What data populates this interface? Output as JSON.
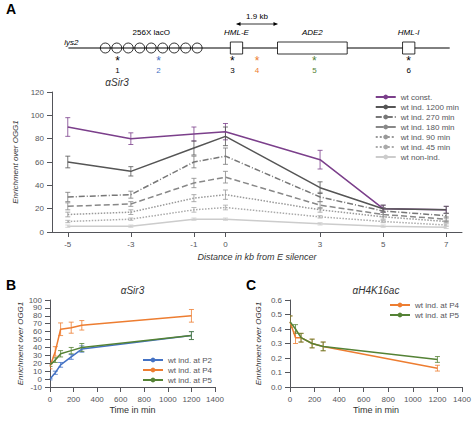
{
  "chart_data": [
    {
      "type": "line",
      "title": "αSir3",
      "xlabel": "Distance in kb from E silencer",
      "ylabel": "Enrichment over OGG1",
      "x": [
        -5,
        -3,
        -1,
        0,
        3,
        5,
        7
      ],
      "series": [
        {
          "name": "wt const.",
          "color": "#7B3F8B",
          "line_style": "solid",
          "values": [
            90,
            80,
            84,
            86,
            62,
            20,
            19
          ],
          "errors": [
            8,
            5,
            6,
            7,
            8,
            3,
            3
          ]
        },
        {
          "name": "wt ind. 1200 min",
          "color": "#555555",
          "line_style": "solid",
          "values": [
            60,
            52,
            72,
            82,
            38,
            20,
            19
          ],
          "errors": [
            5,
            4,
            6,
            8,
            5,
            3,
            3
          ]
        },
        {
          "name": "wt ind. 270 min",
          "color": "#777777",
          "line_style": "dashdot",
          "values": [
            30,
            32,
            60,
            65,
            30,
            18,
            14
          ],
          "errors": [
            4,
            3,
            5,
            7,
            4,
            3,
            2
          ]
        },
        {
          "name": "wt ind. 180 min",
          "color": "#888888",
          "line_style": "dashed",
          "values": [
            22,
            24,
            42,
            47,
            23,
            15,
            11
          ],
          "errors": [
            3,
            2,
            4,
            5,
            3,
            2,
            2
          ]
        },
        {
          "name": "wt ind. 90 min",
          "color": "#999999",
          "line_style": "dotted",
          "values": [
            15,
            17,
            29,
            32,
            19,
            13,
            9
          ],
          "errors": [
            2,
            2,
            3,
            4,
            2,
            2,
            1
          ]
        },
        {
          "name": "wt ind. 45 min",
          "color": "#aaaaaa",
          "line_style": "dotted",
          "values": [
            9,
            11,
            19,
            21,
            13,
            9,
            6
          ],
          "errors": [
            1,
            1,
            2,
            2,
            1,
            1,
            1
          ]
        },
        {
          "name": "wt non-ind.",
          "color": "#cccccc",
          "line_style": "solid",
          "values": [
            5,
            5,
            11,
            11,
            7,
            5,
            4
          ],
          "errors": [
            1,
            1,
            1,
            1,
            1,
            1,
            1
          ]
        }
      ],
      "xlim": [
        -5.5,
        7.5
      ],
      "xticks": [
        -5,
        -3,
        -1,
        0,
        3,
        5,
        7
      ],
      "ylim": [
        0,
        120
      ],
      "yticks": [
        0,
        20,
        40,
        60,
        80,
        100,
        120
      ],
      "grid": false,
      "legend": "upper right",
      "annotations": [
        {
          "text": "A"
        },
        {
          "text": "lys2"
        },
        {
          "text": "256X lacO"
        },
        {
          "text": "HML-E"
        },
        {
          "text": "ADE2"
        },
        {
          "text": "HML-I"
        },
        {
          "text": "1.9 kb"
        },
        {
          "text": "*",
          "color": "black"
        },
        {
          "text": "1",
          "color": "black"
        },
        {
          "text": "*",
          "color": "#4472C4"
        },
        {
          "text": "2",
          "color": "#4472C4"
        },
        {
          "text": "*",
          "color": "black"
        },
        {
          "text": "3",
          "color": "black"
        },
        {
          "text": "*",
          "color": "#ED7D31"
        },
        {
          "text": "4",
          "color": "#ED7D31"
        },
        {
          "text": "*",
          "color": "#548235"
        },
        {
          "text": "5",
          "color": "#548235"
        },
        {
          "text": "*",
          "color": "black"
        },
        {
          "text": "6",
          "color": "black"
        }
      ]
    },
    {
      "type": "line",
      "title": "αSir3",
      "xlabel": "Time in min",
      "ylabel": "Enrichment over OGG1",
      "x": [
        0,
        45,
        90,
        180,
        270,
        1200
      ],
      "series": [
        {
          "name": "wt ind. at P2",
          "color": "#4472C4",
          "line_style": "solid",
          "values": [
            0,
            8,
            18,
            28,
            38,
            55
          ],
          "errors": [
            1,
            2,
            3,
            3,
            4,
            5
          ]
        },
        {
          "name": "wt ind. at P4",
          "color": "#ED7D31",
          "line_style": "solid",
          "values": [
            16,
            35,
            63,
            65,
            68,
            80
          ],
          "errors": [
            3,
            6,
            8,
            7,
            6,
            8
          ]
        },
        {
          "name": "wt ind. at P5",
          "color": "#548235",
          "line_style": "solid",
          "values": [
            18,
            24,
            32,
            36,
            40,
            55
          ],
          "errors": [
            2,
            3,
            4,
            4,
            5,
            5
          ]
        }
      ],
      "xlim": [
        0,
        1400
      ],
      "xticks": [
        0,
        200,
        400,
        600,
        800,
        1000,
        1200,
        1400
      ],
      "ylim": [
        -10,
        100
      ],
      "yticks": [
        -10,
        0,
        10,
        20,
        30,
        40,
        50,
        60,
        70,
        80,
        90,
        100
      ],
      "grid": false,
      "legend": "lower right",
      "annotations": [
        {
          "text": "B"
        }
      ]
    },
    {
      "type": "line",
      "title": "αH4K16ac",
      "xlabel": "Time in min",
      "ylabel": "Enrichment over OGG1",
      "x": [
        0,
        45,
        90,
        180,
        270,
        1200
      ],
      "series": [
        {
          "name": "wt ind. at P4",
          "color": "#ED7D31",
          "line_style": "solid",
          "values": [
            0.45,
            0.34,
            0.34,
            0.3,
            0.28,
            0.13
          ],
          "errors": [
            0.04,
            0.04,
            0.03,
            0.03,
            0.03,
            0.02
          ]
        },
        {
          "name": "wt ind. at P5",
          "color": "#548235",
          "line_style": "solid",
          "values": [
            0.45,
            0.4,
            0.34,
            0.3,
            0.28,
            0.19
          ],
          "errors": [
            0.04,
            0.03,
            0.03,
            0.03,
            0.03,
            0.02
          ]
        }
      ],
      "xlim": [
        0,
        1400
      ],
      "xticks": [
        0,
        200,
        400,
        600,
        800,
        1000,
        1200,
        1400
      ],
      "ylim": [
        0,
        0.6
      ],
      "yticks": [
        {
          "value": 0.0,
          "label": "0.0"
        },
        0.1,
        0.2,
        0.3,
        0.4,
        0.5,
        0.6
      ],
      "grid": false,
      "legend": "upper right",
      "annotations": [
        {
          "text": "C"
        }
      ]
    }
  ]
}
